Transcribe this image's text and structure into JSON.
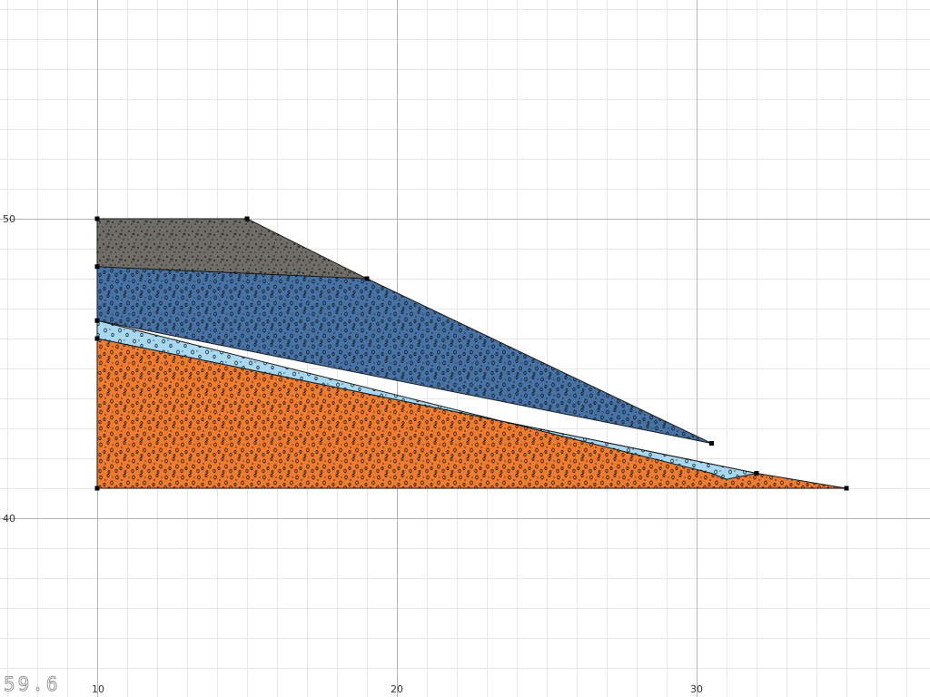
{
  "canvas": {
    "background": "#ffffff",
    "minor_grid_color": "#e6e6e6",
    "major_grid_color": "#b4b4b4",
    "x_axis": {
      "tick_labels": [
        "10",
        "20",
        "30"
      ],
      "minor_step": 1,
      "major_step": 10
    },
    "y_axis": {
      "tick_labels": [
        "50",
        "40"
      ],
      "minor_step": 1,
      "major_step": 10
    }
  },
  "readout": "59.6",
  "layers": [
    {
      "name": "orange",
      "fill": "#ee7b30",
      "pattern": "dense-ovals",
      "points": [
        [
          10,
          46.0
        ],
        [
          32.0,
          41.5
        ],
        [
          35.0,
          41.0
        ],
        [
          10,
          41.0
        ]
      ]
    },
    {
      "name": "light-blue",
      "fill": "#a7d8f0",
      "pattern": "sparse-ovals",
      "points": [
        [
          10,
          46.6
        ],
        [
          30.5,
          41.5
        ],
        [
          31.0,
          41.3
        ],
        [
          32.0,
          41.5
        ],
        [
          10,
          46.0
        ]
      ]
    },
    {
      "name": "blue",
      "fill": "#4672a5",
      "pattern": "dense-ovals",
      "points": [
        [
          10,
          48.4
        ],
        [
          19.0,
          48.0
        ],
        [
          30.5,
          42.5
        ],
        [
          10,
          46.6
        ]
      ]
    },
    {
      "name": "grey",
      "fill": "#6f6d68",
      "pattern": "dots",
      "points": [
        [
          10,
          50.0
        ],
        [
          15.0,
          50.0
        ],
        [
          19.0,
          48.0
        ],
        [
          10,
          48.4
        ]
      ]
    }
  ],
  "vertices": [
    [
      10,
      50.0
    ],
    [
      15.0,
      50.0
    ],
    [
      10,
      48.4
    ],
    [
      19.0,
      48.0
    ],
    [
      10,
      46.6
    ],
    [
      10,
      46.0
    ],
    [
      30.5,
      42.5
    ],
    [
      32.0,
      41.5
    ],
    [
      10,
      41.0
    ],
    [
      35.0,
      41.0
    ]
  ]
}
